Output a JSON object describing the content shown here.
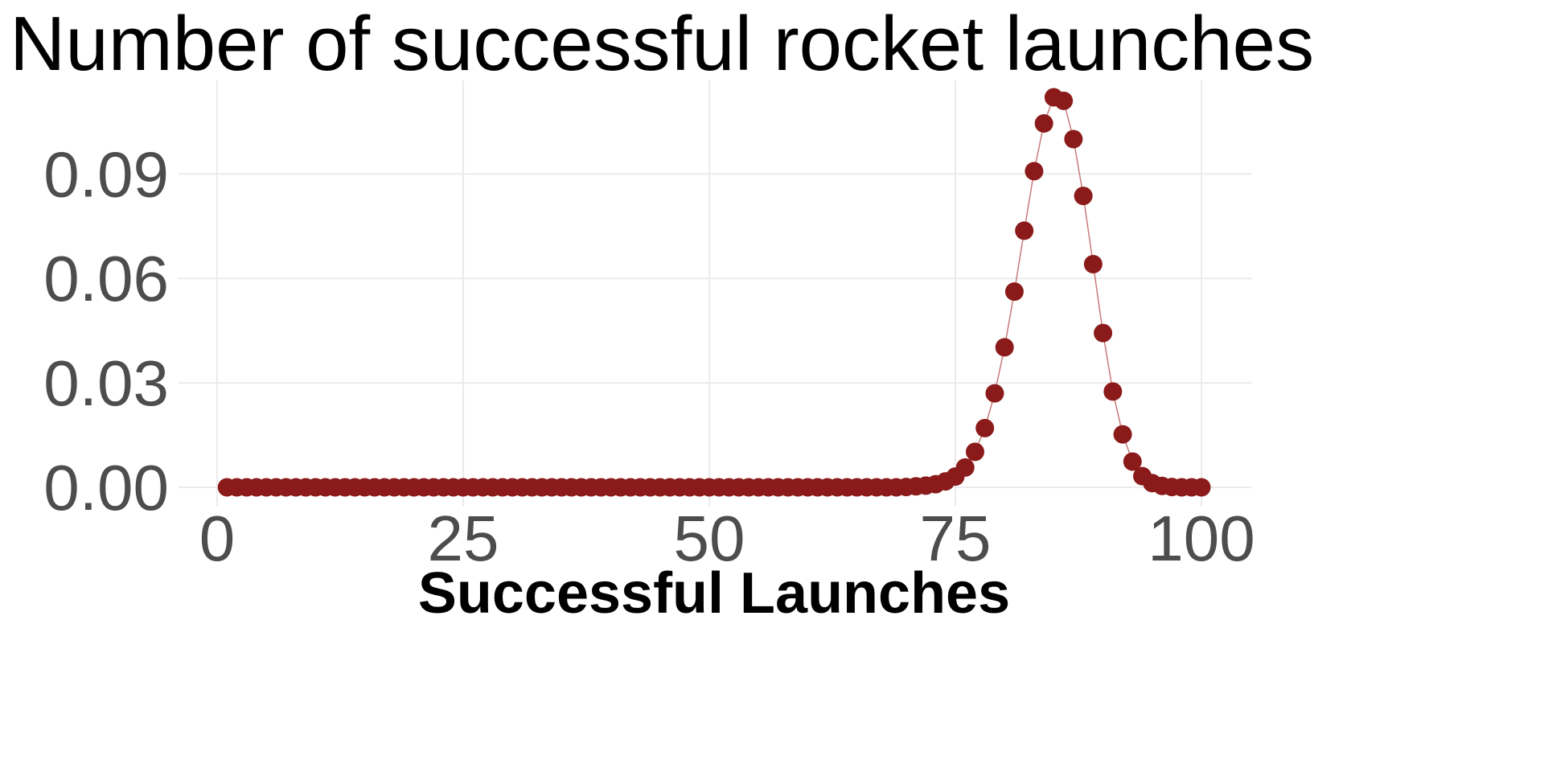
{
  "chart_data": {
    "type": "line",
    "title": "Number of successful rocket launches",
    "xlabel": "Successful Launches",
    "ylabel": "",
    "xlim": [
      0,
      100
    ],
    "ylim": [
      0,
      0.11
    ],
    "x_ticks": [
      0,
      25,
      50,
      75,
      100
    ],
    "x_tick_labels": [
      "0",
      "25",
      "50",
      "75",
      "100"
    ],
    "y_ticks": [
      0,
      0.03,
      0.06,
      0.09
    ],
    "y_tick_labels": [
      "0.00",
      "0.03",
      "0.06",
      "0.09"
    ],
    "grid": true,
    "legend": "none",
    "colors": {
      "point": "#8b1a1a",
      "line": "#c77a7a",
      "grid": "#ebebeb",
      "tick_text": "#4d4d4d"
    },
    "series": [
      {
        "x": [
          1,
          2,
          3,
          4,
          5,
          6,
          7,
          8,
          9,
          10,
          11,
          12,
          13,
          14,
          15,
          16,
          17,
          18,
          19,
          20,
          21,
          22,
          23,
          24,
          25,
          26,
          27,
          28,
          29,
          30,
          31,
          32,
          33,
          34,
          35,
          36,
          37,
          38,
          39,
          40,
          41,
          42,
          43,
          44,
          45,
          46,
          47,
          48,
          49,
          50,
          51,
          52,
          53,
          54,
          55,
          56,
          57,
          58,
          59,
          60,
          61,
          62,
          63,
          64,
          65,
          66,
          67,
          68,
          69,
          70,
          71,
          72,
          73,
          74,
          75,
          76,
          77,
          78,
          79,
          80,
          81,
          82,
          83,
          84,
          85,
          86,
          87,
          88,
          89,
          90,
          91,
          92,
          93,
          94,
          95,
          96,
          97,
          98,
          99,
          100
        ],
        "values": [
          0,
          0,
          0,
          0,
          0,
          0,
          0,
          0,
          0,
          0,
          0,
          0,
          0,
          0,
          0,
          0,
          0,
          0,
          0,
          0,
          0,
          0,
          0,
          0,
          0,
          0,
          0,
          0,
          0,
          0,
          0,
          0,
          0,
          0,
          0,
          0,
          0,
          0,
          0,
          0,
          0,
          0,
          0,
          0,
          0,
          0,
          0,
          0,
          0,
          0,
          0,
          0,
          0,
          0,
          0,
          0,
          0,
          0,
          0,
          0,
          0,
          0,
          0,
          0,
          0,
          0,
          0,
          0,
          0,
          0.0001,
          0.0003,
          0.0005,
          0.0009,
          0.0017,
          0.0031,
          0.0057,
          0.0102,
          0.017,
          0.027,
          0.0402,
          0.0562,
          0.0737,
          0.0908,
          0.1045,
          0.112,
          0.111,
          0.1,
          0.0837,
          0.0641,
          0.0443,
          0.0275,
          0.0152,
          0.0074,
          0.0032,
          0.0012,
          0.0004,
          0.0001,
          0,
          0,
          0
        ]
      }
    ]
  }
}
